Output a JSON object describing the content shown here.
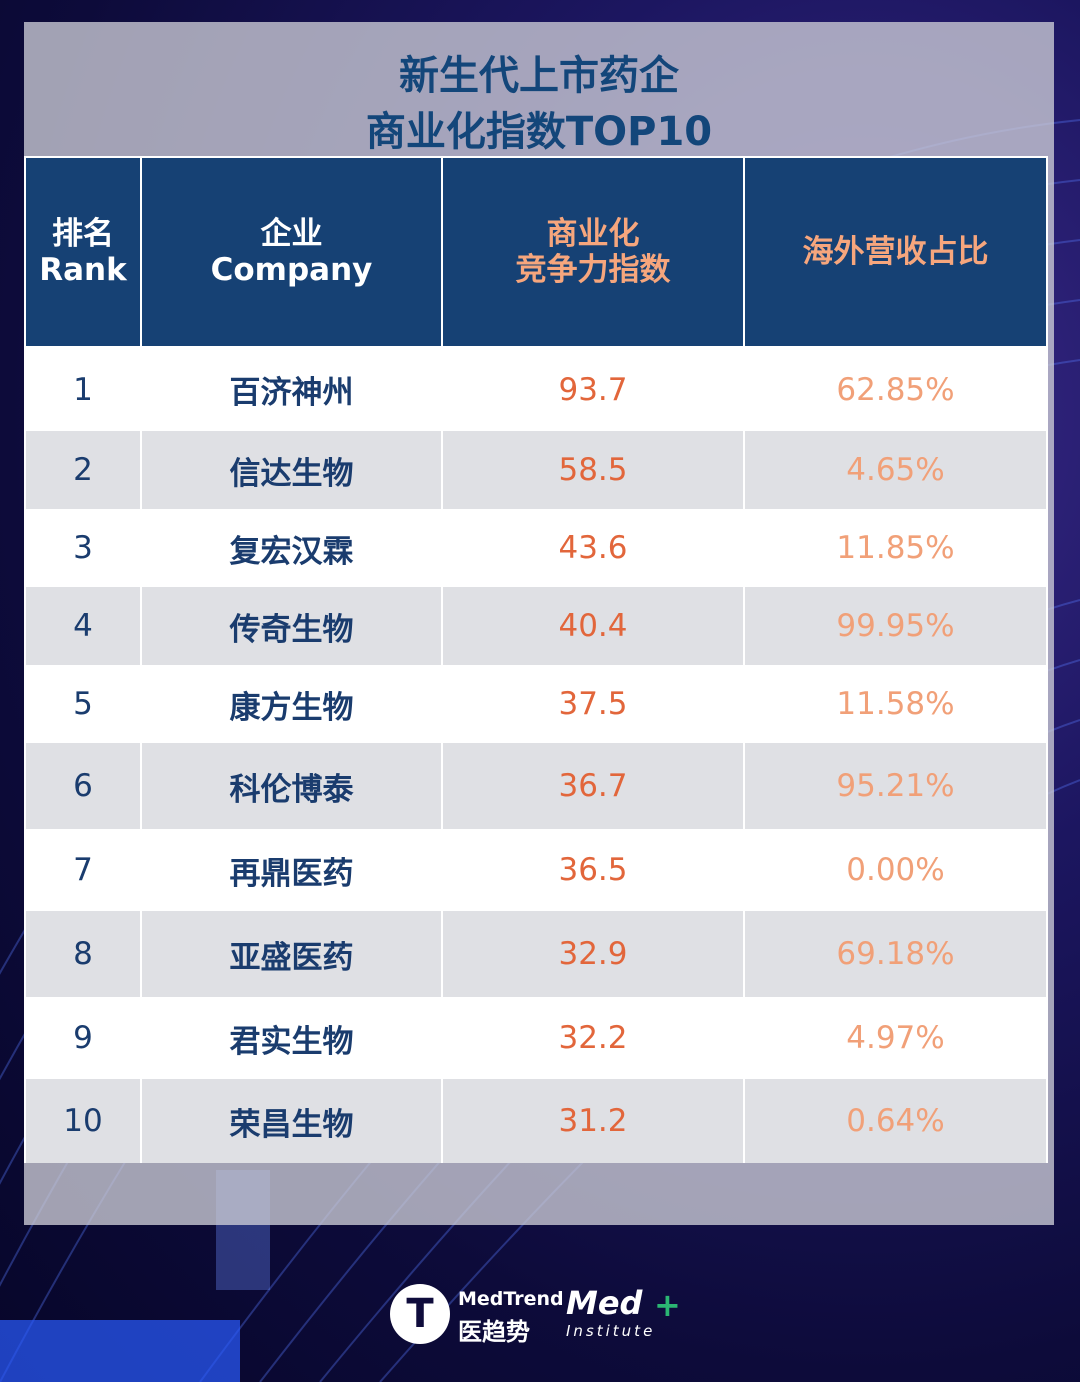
{
  "title": {
    "line1": "新生代上市药企",
    "line2": "商业化指数TOP10"
  },
  "header": {
    "rank_cn": "排名",
    "rank_en": "Rank",
    "company_cn": "企业",
    "company_en": "Company",
    "score_line1": "商业化",
    "score_line2": "竞争力指数",
    "share": "海外营收占比"
  },
  "rows": [
    {
      "rank": "1",
      "company": "百济神州",
      "score": "93.7",
      "share": "62.85%"
    },
    {
      "rank": "2",
      "company": "信达生物",
      "score": "58.5",
      "share": "4.65%"
    },
    {
      "rank": "3",
      "company": "复宏汉霖",
      "score": "43.6",
      "share": "11.85%"
    },
    {
      "rank": "4",
      "company": "传奇生物",
      "score": "40.4",
      "share": "99.95%"
    },
    {
      "rank": "5",
      "company": "康方生物",
      "score": "37.5",
      "share": "11.58%"
    },
    {
      "rank": "6",
      "company": "科伦博泰",
      "score": "36.7",
      "share": "95.21%"
    },
    {
      "rank": "7",
      "company": "再鼎医药",
      "score": "36.5",
      "share": "0.00%"
    },
    {
      "rank": "8",
      "company": "亚盛医药",
      "score": "32.9",
      "share": "69.18%"
    },
    {
      "rank": "9",
      "company": "君实生物",
      "score": "32.2",
      "share": "4.97%"
    },
    {
      "rank": "10",
      "company": "荣昌生物",
      "score": "31.2",
      "share": "0.64%"
    }
  ],
  "logos": {
    "medtrend_mark": "T",
    "medtrend_en": "MedTrend",
    "medtrend_cn": "医趋势",
    "med_word": "Med",
    "med_plus": "+",
    "med_sub": "Institute"
  },
  "colors": {
    "header_bg": "#164174",
    "title": "#13467a",
    "score": "#e2663b",
    "share": "#f1a078",
    "row_alt": "#dfe0e4"
  }
}
